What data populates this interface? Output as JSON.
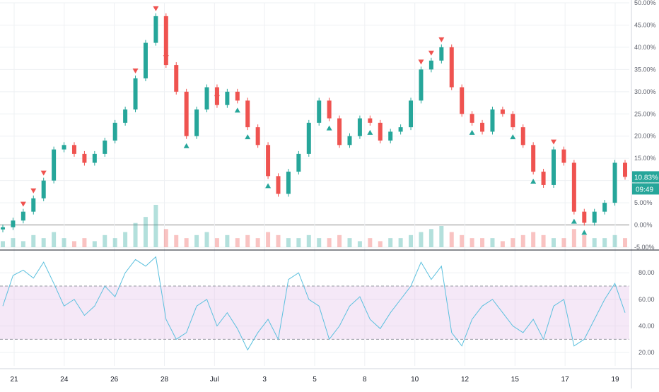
{
  "chart_data": [
    {
      "type": "candlestick",
      "title": "",
      "y_unit": "%",
      "ylim": [
        -5,
        50
      ],
      "y_ticks": [
        "50.00%",
        "45.00%",
        "40.00%",
        "35.00%",
        "30.00%",
        "25.00%",
        "20.00%",
        "15.00%",
        "10.00%",
        "5.00%",
        "0.00%",
        "-5.00%"
      ],
      "x_ticks": [
        "21",
        "24",
        "26",
        "28",
        "Jul",
        "3",
        "5",
        "8",
        "10",
        "12",
        "15",
        "17",
        "19"
      ],
      "baseline_label": "0.00%",
      "last_value_label": "10.83%",
      "countdown_label": "09:49",
      "grid": true,
      "series": [
        {
          "name": "",
          "x": [
            "20",
            "20.5",
            "21",
            "21.5",
            "22",
            "22.5",
            "23",
            "23.5",
            "24",
            "24.5",
            "25",
            "25.5",
            "26",
            "26.3",
            "26.5",
            "26.8",
            "27",
            "27.5",
            "28",
            "28.5",
            "29",
            "29.5",
            "30",
            "30.5",
            "Jul 1",
            "1.5",
            "2",
            "2.5",
            "3",
            "3.5",
            "4",
            "4.5",
            "5",
            "5.5",
            "6",
            "6.5",
            "7",
            "7.5",
            "8",
            "8.5",
            "9",
            "9.5",
            "10",
            "10.5",
            "11",
            "11.5",
            "12",
            "12.5",
            "13",
            "13.5",
            "14",
            "14.5",
            "15",
            "15.5",
            "16",
            "16.5",
            "17",
            "17.5",
            "18",
            "18.5",
            "19",
            "19.5"
          ],
          "values": [
            -0.5,
            1,
            3,
            6,
            10,
            17,
            18,
            16,
            14,
            16,
            19,
            23,
            26,
            33,
            41,
            47,
            36,
            30,
            20,
            26,
            31,
            27,
            30,
            28,
            22,
            18,
            11,
            7,
            12,
            16,
            23,
            28,
            24,
            18,
            20,
            24,
            23,
            19,
            21,
            22,
            28,
            35,
            37,
            40,
            31,
            25,
            23,
            21,
            26,
            25,
            22,
            18,
            12,
            9,
            17,
            14,
            3,
            0.5,
            3,
            5,
            14,
            10.83
          ]
        }
      ],
      "volume": [
        2,
        3,
        2,
        4,
        3,
        5,
        3,
        2,
        3,
        2,
        4,
        3,
        5,
        8,
        10,
        14,
        6,
        4,
        3,
        4,
        5,
        3,
        4,
        3,
        4,
        3,
        5,
        4,
        3,
        3,
        4,
        3,
        3,
        4,
        3,
        2,
        3,
        2,
        3,
        3,
        4,
        5,
        6,
        7,
        5,
        4,
        3,
        3,
        3,
        2,
        3,
        4,
        5,
        4,
        3,
        3,
        6,
        4,
        3,
        3,
        4,
        3
      ],
      "sell_markers_x": [
        "21",
        "21.5",
        "22",
        "26.3",
        "26.8",
        "27",
        "29.5",
        "9.5",
        "10",
        "10.5",
        "16"
      ],
      "buy_markers_x": [
        "28",
        "30.5",
        "Jul 1",
        "2",
        "5",
        "7",
        "12",
        "14",
        "15",
        "17",
        "17.5"
      ]
    },
    {
      "type": "line",
      "title": "",
      "ylim": [
        10,
        95
      ],
      "y_ticks": [
        "80.00",
        "60.00",
        "40.00",
        "20.00"
      ],
      "band": [
        30,
        70
      ],
      "grid": true,
      "series": [
        {
          "name": "",
          "x": [
            "20",
            "20.5",
            "21",
            "21.5",
            "22",
            "22.5",
            "23",
            "23.5",
            "24",
            "24.5",
            "25",
            "25.5",
            "26",
            "26.3",
            "26.5",
            "26.8",
            "27",
            "27.5",
            "28",
            "28.5",
            "29",
            "29.5",
            "30",
            "30.5",
            "Jul 1",
            "1.5",
            "2",
            "2.5",
            "3",
            "3.5",
            "4",
            "4.5",
            "5",
            "5.5",
            "6",
            "6.5",
            "7",
            "7.5",
            "8",
            "8.5",
            "9",
            "9.5",
            "10",
            "10.5",
            "11",
            "11.5",
            "12",
            "12.5",
            "13",
            "13.5",
            "14",
            "14.5",
            "15",
            "15.5",
            "16",
            "16.5",
            "17",
            "17.5",
            "18",
            "18.5",
            "19",
            "19.5"
          ],
          "values": [
            55,
            78,
            82,
            76,
            88,
            72,
            55,
            60,
            48,
            55,
            70,
            62,
            80,
            90,
            85,
            92,
            45,
            30,
            35,
            55,
            60,
            40,
            50,
            38,
            22,
            35,
            45,
            30,
            75,
            80,
            60,
            55,
            30,
            40,
            55,
            62,
            45,
            38,
            50,
            60,
            70,
            88,
            75,
            85,
            35,
            25,
            45,
            55,
            60,
            50,
            40,
            35,
            45,
            30,
            55,
            60,
            25,
            30,
            45,
            60,
            72,
            50
          ]
        }
      ]
    }
  ]
}
